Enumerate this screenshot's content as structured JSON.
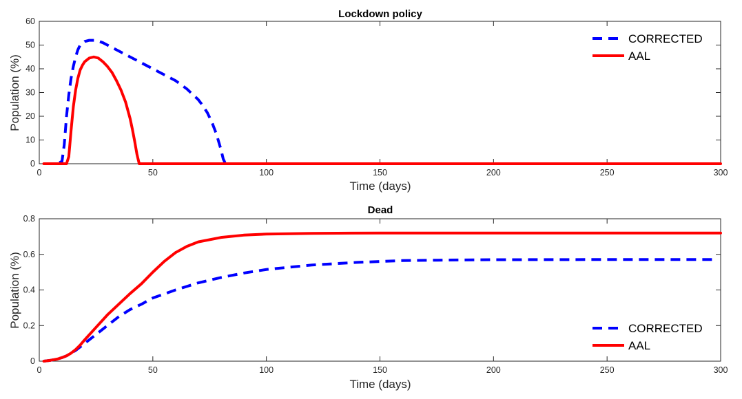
{
  "chart_data": [
    {
      "type": "line",
      "title": "Lockdown policy",
      "xlabel": "Time (days)",
      "ylabel": "Population (%)",
      "xlim": [
        0,
        300
      ],
      "ylim": [
        0,
        60
      ],
      "xticks": [
        0,
        50,
        100,
        150,
        200,
        250,
        300
      ],
      "yticks": [
        0,
        10,
        20,
        30,
        40,
        50,
        60
      ],
      "grid": false,
      "legend_position": "top-right",
      "series": [
        {
          "name": "CORRECTED",
          "color": "#0000ff",
          "dash": "dashed",
          "x": [
            2,
            8,
            10,
            11,
            12,
            13,
            14,
            15,
            16,
            17,
            18,
            20,
            22,
            25,
            28,
            30,
            35,
            40,
            45,
            50,
            55,
            60,
            65,
            70,
            72,
            74,
            76,
            78,
            80,
            81,
            82,
            100,
            150,
            200,
            250,
            300
          ],
          "y": [
            0,
            0,
            1,
            8,
            20,
            29,
            36,
            41,
            45,
            48,
            50,
            51.5,
            52,
            52,
            51,
            50,
            47.5,
            45,
            42.5,
            40,
            37.5,
            35,
            31.5,
            27,
            24.5,
            21.5,
            17.5,
            12.5,
            6,
            2,
            0,
            0,
            0,
            0,
            0,
            0
          ]
        },
        {
          "name": "AAL",
          "color": "#ff0000",
          "dash": "solid",
          "x": [
            2,
            10,
            12,
            13,
            14,
            15,
            16,
            17,
            18,
            19,
            20,
            22,
            24,
            26,
            28,
            30,
            32,
            34,
            36,
            38,
            40,
            41,
            42,
            43,
            44,
            50,
            100,
            150,
            200,
            250,
            300
          ],
          "y": [
            0,
            0,
            0,
            3,
            14,
            24,
            31,
            36,
            39.5,
            41.5,
            43,
            44.5,
            45,
            44.5,
            43,
            41,
            38.5,
            35,
            31,
            26,
            19,
            14.5,
            9.5,
            4,
            0,
            0,
            0,
            0,
            0,
            0,
            0
          ]
        }
      ]
    },
    {
      "type": "line",
      "title": "Dead",
      "xlabel": "Time (days)",
      "ylabel": "Population (%)",
      "xlim": [
        0,
        300
      ],
      "ylim": [
        0,
        0.8
      ],
      "xticks": [
        0,
        50,
        100,
        150,
        200,
        250,
        300
      ],
      "yticks": [
        0,
        0.2,
        0.4,
        0.6,
        0.8
      ],
      "grid": false,
      "legend_position": "bottom-right",
      "series": [
        {
          "name": "CORRECTED",
          "color": "#0000ff",
          "dash": "dashed",
          "x": [
            2,
            5,
            8,
            10,
            12,
            14,
            16,
            18,
            20,
            25,
            30,
            35,
            40,
            45,
            50,
            60,
            70,
            80,
            90,
            100,
            120,
            140,
            160,
            180,
            200,
            250,
            298
          ],
          "y": [
            0,
            0.005,
            0.012,
            0.02,
            0.03,
            0.045,
            0.06,
            0.08,
            0.1,
            0.15,
            0.2,
            0.25,
            0.29,
            0.32,
            0.355,
            0.4,
            0.44,
            0.47,
            0.495,
            0.515,
            0.54,
            0.555,
            0.565,
            0.568,
            0.57,
            0.571,
            0.571
          ]
        },
        {
          "name": "AAL",
          "color": "#ff0000",
          "dash": "solid",
          "x": [
            2,
            5,
            8,
            10,
            12,
            14,
            16,
            18,
            20,
            25,
            30,
            35,
            40,
            45,
            50,
            55,
            60,
            65,
            70,
            80,
            90,
            100,
            120,
            150,
            200,
            250,
            300
          ],
          "y": [
            0,
            0.005,
            0.012,
            0.02,
            0.03,
            0.045,
            0.065,
            0.09,
            0.12,
            0.19,
            0.26,
            0.32,
            0.38,
            0.435,
            0.5,
            0.56,
            0.61,
            0.645,
            0.67,
            0.695,
            0.708,
            0.714,
            0.718,
            0.72,
            0.72,
            0.72,
            0.72
          ]
        }
      ]
    }
  ]
}
